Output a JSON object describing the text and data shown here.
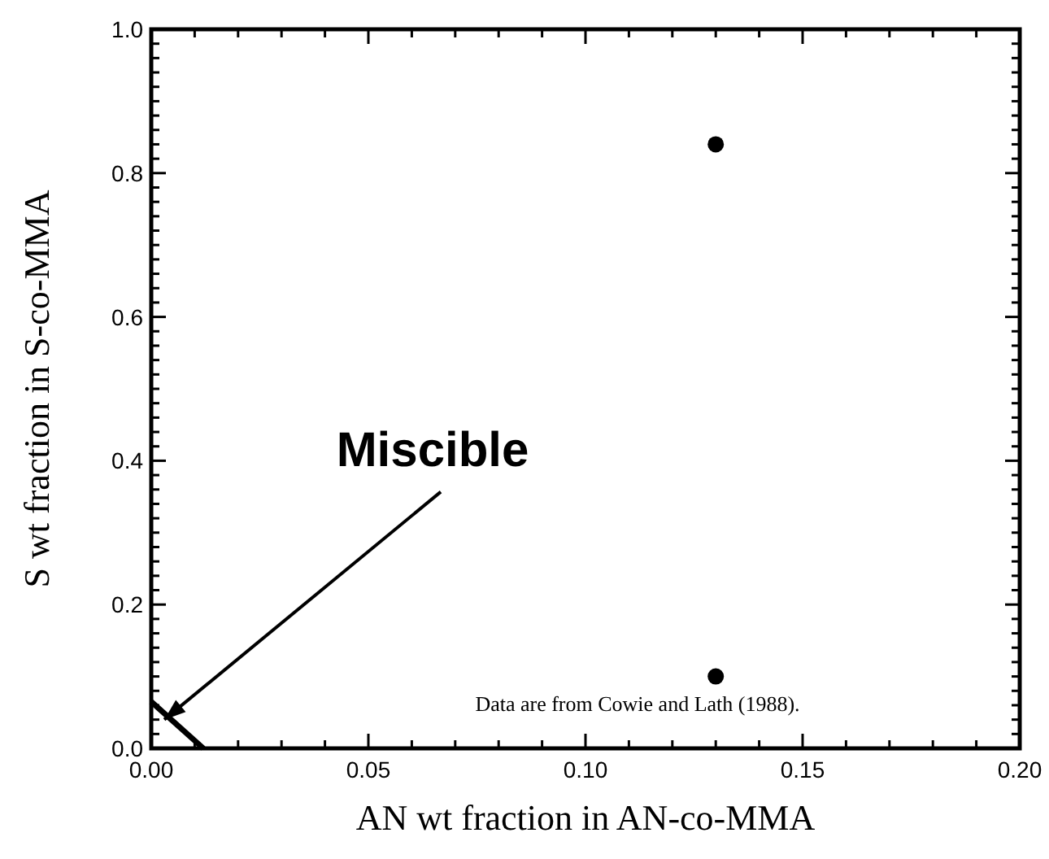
{
  "chart_data": {
    "type": "scatter",
    "xlabel": "AN wt fraction in AN-co-MMA",
    "ylabel": "S wt fraction in S-co-MMA",
    "xlim": [
      0,
      0.2
    ],
    "ylim": [
      0,
      1
    ],
    "xticks": [
      {
        "value": 0,
        "label": "0.00"
      },
      {
        "value": 0.01,
        "label": null
      },
      {
        "value": 0.02,
        "label": null
      },
      {
        "value": 0.03,
        "label": null
      },
      {
        "value": 0.04,
        "label": null
      },
      {
        "value": 0.05,
        "label": "0.05"
      },
      {
        "value": 0.06,
        "label": null
      },
      {
        "value": 0.07,
        "label": null
      },
      {
        "value": 0.08,
        "label": null
      },
      {
        "value": 0.09,
        "label": null
      },
      {
        "value": 0.1,
        "label": "0.10"
      },
      {
        "value": 0.11,
        "label": null
      },
      {
        "value": 0.12,
        "label": null
      },
      {
        "value": 0.13,
        "label": null
      },
      {
        "value": 0.14,
        "label": null
      },
      {
        "value": 0.15,
        "label": "0.15"
      },
      {
        "value": 0.16,
        "label": null
      },
      {
        "value": 0.17,
        "label": null
      },
      {
        "value": 0.18,
        "label": null
      },
      {
        "value": 0.19,
        "label": null
      },
      {
        "value": 0.2,
        "label": "0.20"
      }
    ],
    "yticks": [
      {
        "value": 0,
        "label": "0.0"
      },
      {
        "value": 0.02,
        "label": null
      },
      {
        "value": 0.04,
        "label": null
      },
      {
        "value": 0.06,
        "label": null
      },
      {
        "value": 0.08,
        "label": null
      },
      {
        "value": 0.1,
        "label": null
      },
      {
        "value": 0.12,
        "label": null
      },
      {
        "value": 0.14,
        "label": null
      },
      {
        "value": 0.16,
        "label": null
      },
      {
        "value": 0.18,
        "label": null
      },
      {
        "value": 0.2,
        "label": "0.2"
      },
      {
        "value": 0.22,
        "label": null
      },
      {
        "value": 0.24,
        "label": null
      },
      {
        "value": 0.26,
        "label": null
      },
      {
        "value": 0.28,
        "label": null
      },
      {
        "value": 0.3,
        "label": null
      },
      {
        "value": 0.32,
        "label": null
      },
      {
        "value": 0.34,
        "label": null
      },
      {
        "value": 0.36,
        "label": null
      },
      {
        "value": 0.38,
        "label": null
      },
      {
        "value": 0.4,
        "label": "0.4"
      },
      {
        "value": 0.42,
        "label": null
      },
      {
        "value": 0.44,
        "label": null
      },
      {
        "value": 0.46,
        "label": null
      },
      {
        "value": 0.48,
        "label": null
      },
      {
        "value": 0.5,
        "label": null
      },
      {
        "value": 0.52,
        "label": null
      },
      {
        "value": 0.54,
        "label": null
      },
      {
        "value": 0.56,
        "label": null
      },
      {
        "value": 0.58,
        "label": null
      },
      {
        "value": 0.6,
        "label": "0.6"
      },
      {
        "value": 0.62,
        "label": null
      },
      {
        "value": 0.64,
        "label": null
      },
      {
        "value": 0.66,
        "label": null
      },
      {
        "value": 0.68,
        "label": null
      },
      {
        "value": 0.7,
        "label": null
      },
      {
        "value": 0.72,
        "label": null
      },
      {
        "value": 0.74,
        "label": null
      },
      {
        "value": 0.76,
        "label": null
      },
      {
        "value": 0.78,
        "label": null
      },
      {
        "value": 0.8,
        "label": "0.8"
      },
      {
        "value": 0.82,
        "label": null
      },
      {
        "value": 0.84,
        "label": null
      },
      {
        "value": 0.86,
        "label": null
      },
      {
        "value": 0.88,
        "label": null
      },
      {
        "value": 0.9,
        "label": null
      },
      {
        "value": 0.92,
        "label": null
      },
      {
        "value": 0.94,
        "label": null
      },
      {
        "value": 0.96,
        "label": null
      },
      {
        "value": 0.98,
        "label": null
      },
      {
        "value": 1,
        "label": "1.0"
      }
    ],
    "grid": false,
    "series": [
      {
        "type": "line",
        "color": "#000000",
        "x": [
          0,
          0.012
        ],
        "values": [
          0.065,
          0
        ],
        "line_style": "solid",
        "marker": "none"
      },
      {
        "color": "#000000",
        "x": [
          0.13,
          0.13
        ],
        "values": [
          0.84,
          0.1
        ],
        "marker": "circle"
      }
    ],
    "annotations": [
      {
        "text": "Miscible",
        "x": 0.003,
        "y": 0.04
      },
      "Data are from Cowie and Lath (1988)."
    ]
  }
}
